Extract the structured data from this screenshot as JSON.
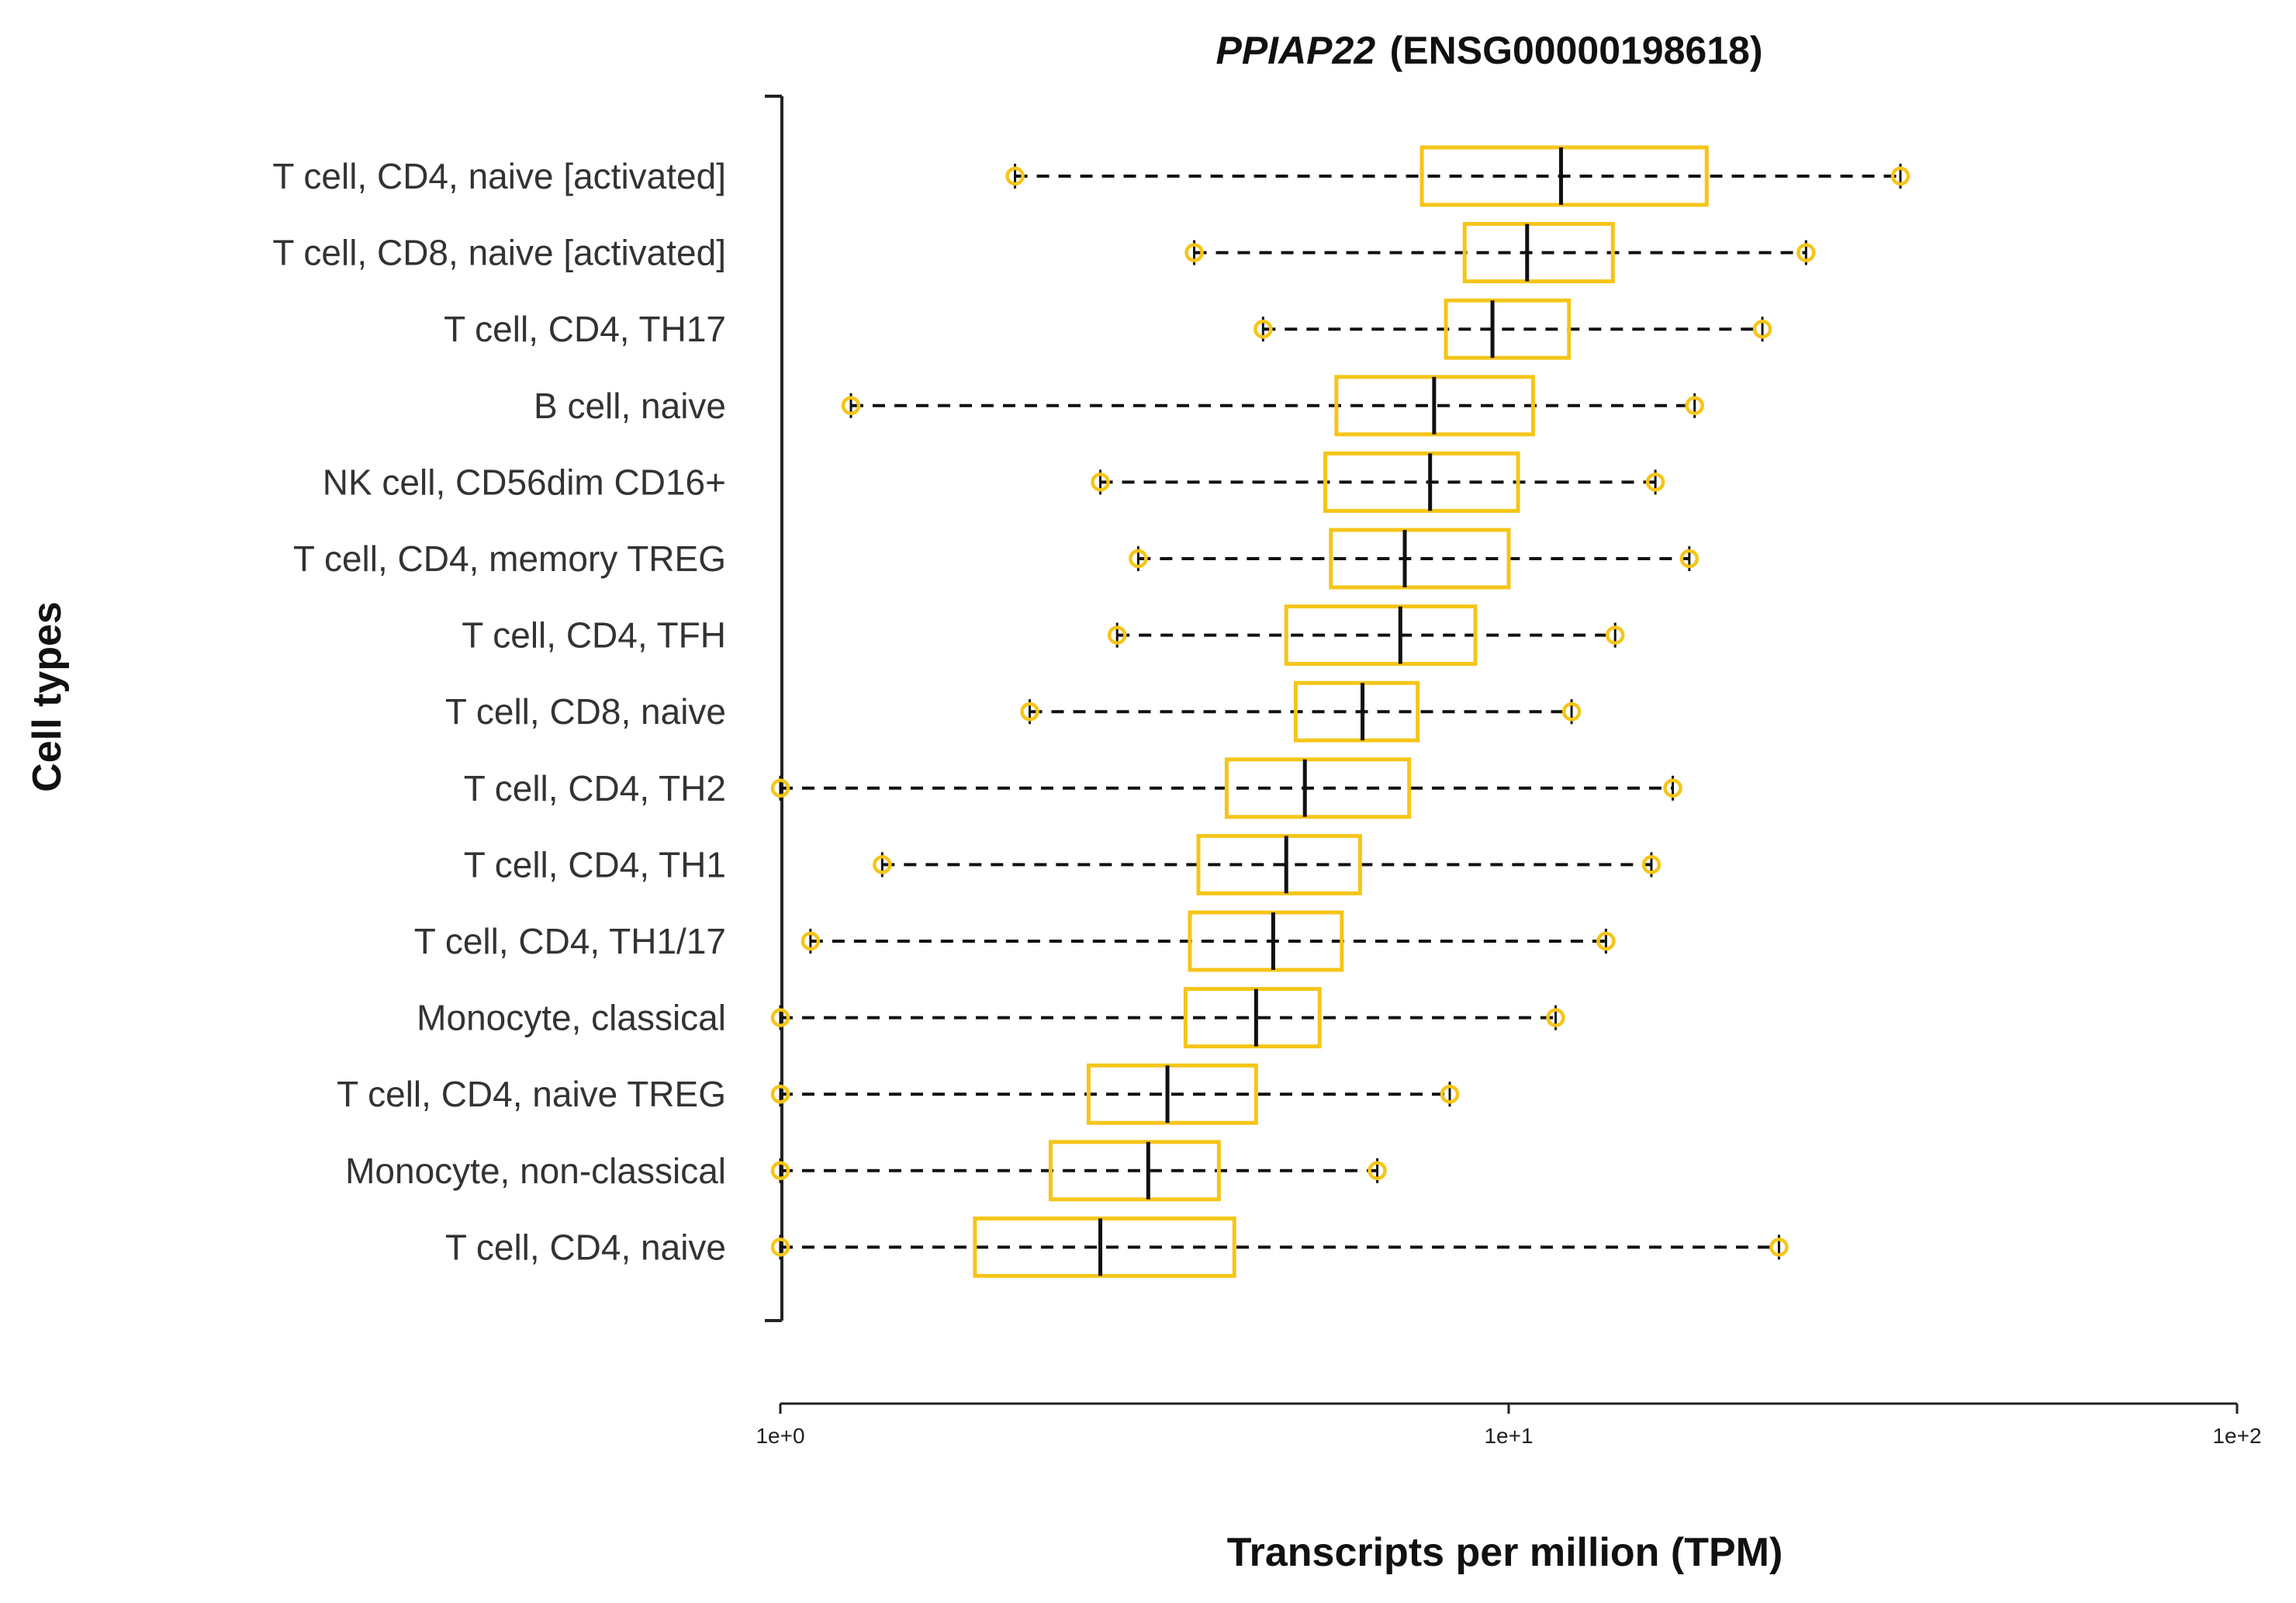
{
  "chart_data": {
    "type": "boxplot",
    "orientation": "horizontal",
    "title": {
      "gene": "PPIAP22",
      "id": "(ENSG00000198618)"
    },
    "xlabel": "Transcripts per million (TPM)",
    "ylabel": "Cell types",
    "x_scale": "log10",
    "xlim": [
      1,
      100
    ],
    "x_ticks": [
      {
        "value": 1,
        "label": "1e+0"
      },
      {
        "value": 10,
        "label": "1e+1"
      },
      {
        "value": 100,
        "label": "1e+2"
      }
    ],
    "colors": {
      "box": "#F5C518",
      "whisker": "#111111",
      "median": "#111111",
      "axis": "#222222"
    },
    "series": [
      {
        "name": "T cell, CD4, naive [activated]",
        "min": 2.1,
        "q1": 7.6,
        "median": 11.8,
        "q3": 18.7,
        "max": 34.5
      },
      {
        "name": "T cell, CD8, naive [activated]",
        "min": 3.7,
        "q1": 8.7,
        "median": 10.6,
        "q3": 13.9,
        "max": 25.6
      },
      {
        "name": "T cell, CD4, TH17",
        "min": 4.6,
        "q1": 8.2,
        "median": 9.5,
        "q3": 12.1,
        "max": 22.3
      },
      {
        "name": "B cell, naive",
        "min": 1.25,
        "q1": 5.8,
        "median": 7.9,
        "q3": 10.8,
        "max": 18.0
      },
      {
        "name": "NK cell, CD56dim CD16+",
        "min": 2.75,
        "q1": 5.6,
        "median": 7.8,
        "q3": 10.3,
        "max": 15.9
      },
      {
        "name": "T cell, CD4, memory TREG",
        "min": 3.1,
        "q1": 5.7,
        "median": 7.2,
        "q3": 10.0,
        "max": 17.7
      },
      {
        "name": "T cell, CD4, TFH",
        "min": 2.9,
        "q1": 4.95,
        "median": 7.1,
        "q3": 9.0,
        "max": 14.0
      },
      {
        "name": "T cell, CD8, naive",
        "min": 2.2,
        "q1": 5.1,
        "median": 6.3,
        "q3": 7.5,
        "max": 12.2
      },
      {
        "name": "T cell, CD4, TH2",
        "min": 1.0,
        "q1": 4.1,
        "median": 5.25,
        "q3": 7.3,
        "max": 16.8
      },
      {
        "name": "T cell, CD4, TH1",
        "min": 1.38,
        "q1": 3.75,
        "median": 4.95,
        "q3": 6.25,
        "max": 15.7
      },
      {
        "name": "T cell, CD4, TH1/17",
        "min": 1.1,
        "q1": 3.65,
        "median": 4.75,
        "q3": 5.9,
        "max": 13.6
      },
      {
        "name": "Monocyte, classical",
        "min": 1.0,
        "q1": 3.6,
        "median": 4.5,
        "q3": 5.5,
        "max": 11.6
      },
      {
        "name": "T cell, CD4, naive TREG",
        "min": 1.0,
        "q1": 2.65,
        "median": 3.4,
        "q3": 4.5,
        "max": 8.3
      },
      {
        "name": "Monocyte, non-classical",
        "min": 1.0,
        "q1": 2.35,
        "median": 3.2,
        "q3": 4.0,
        "max": 6.6
      },
      {
        "name": "T cell, CD4, naive",
        "min": 1.0,
        "q1": 1.85,
        "median": 2.75,
        "q3": 4.2,
        "max": 23.5
      }
    ]
  }
}
